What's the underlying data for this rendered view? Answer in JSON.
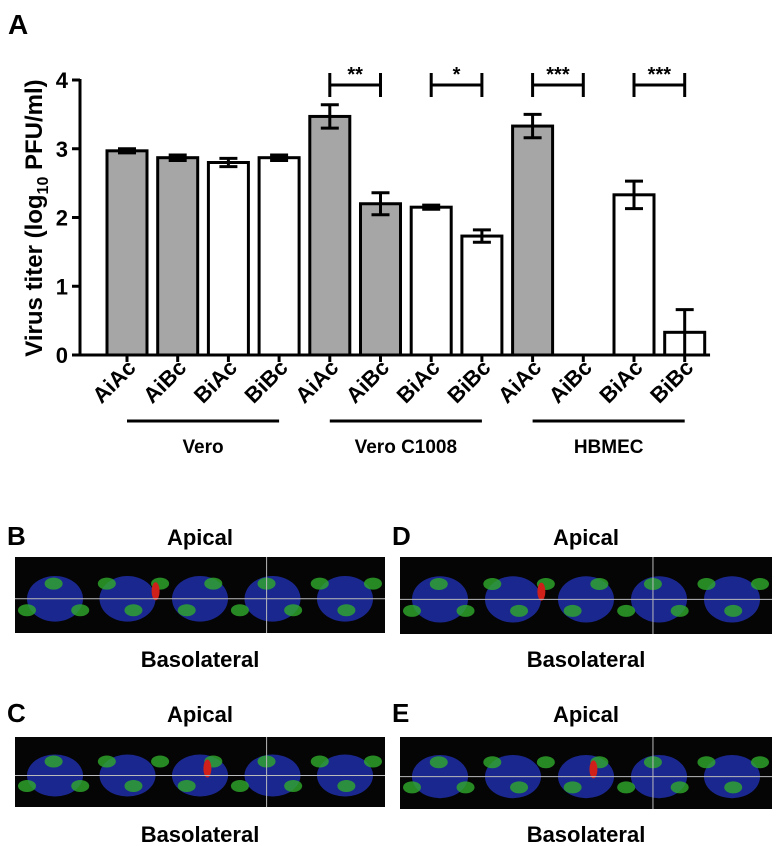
{
  "chart_data": {
    "type": "bar",
    "panel": "A",
    "y_label": {
      "main": "Virus titer (log",
      "sub": "10",
      "rest": " PFU/ml)"
    },
    "categories": [
      "AiAc",
      "AiBc",
      "BiAc",
      "BiBc",
      "AiAc",
      "AiBc",
      "BiAc",
      "BiBc",
      "AiAc",
      "AiBc",
      "BiAc",
      "BiBc"
    ],
    "values": [
      2.97,
      2.87,
      2.8,
      2.87,
      3.47,
      2.2,
      2.15,
      1.73,
      3.33,
      0,
      2.33,
      0.33
    ],
    "errors": [
      0.03,
      0.04,
      0.06,
      0.04,
      0.17,
      0.16,
      0.03,
      0.09,
      0.17,
      0,
      0.2,
      0.33
    ],
    "colors": [
      "#a6a6a6",
      "#a6a6a6",
      "#ffffff",
      "#ffffff",
      "#a6a6a6",
      "#a6a6a6",
      "#ffffff",
      "#ffffff",
      "#a6a6a6",
      "#a6a6a6",
      "#ffffff",
      "#ffffff"
    ],
    "groups": [
      "Vero",
      "Vero C1008",
      "HBMEC"
    ],
    "significance": [
      "**",
      "*",
      "***",
      "***"
    ],
    "ylim": [
      0,
      4
    ],
    "yticks": [
      0,
      1,
      2,
      3,
      4
    ]
  },
  "panels": [
    {
      "label": "B",
      "top": "Apical",
      "bottom": "Basolateral"
    },
    {
      "label": "C",
      "top": "Apical",
      "bottom": "Basolateral"
    },
    {
      "label": "D",
      "top": "Apical",
      "bottom": "Basolateral"
    },
    {
      "label": "E",
      "top": "Apical",
      "bottom": "Basolateral"
    }
  ]
}
